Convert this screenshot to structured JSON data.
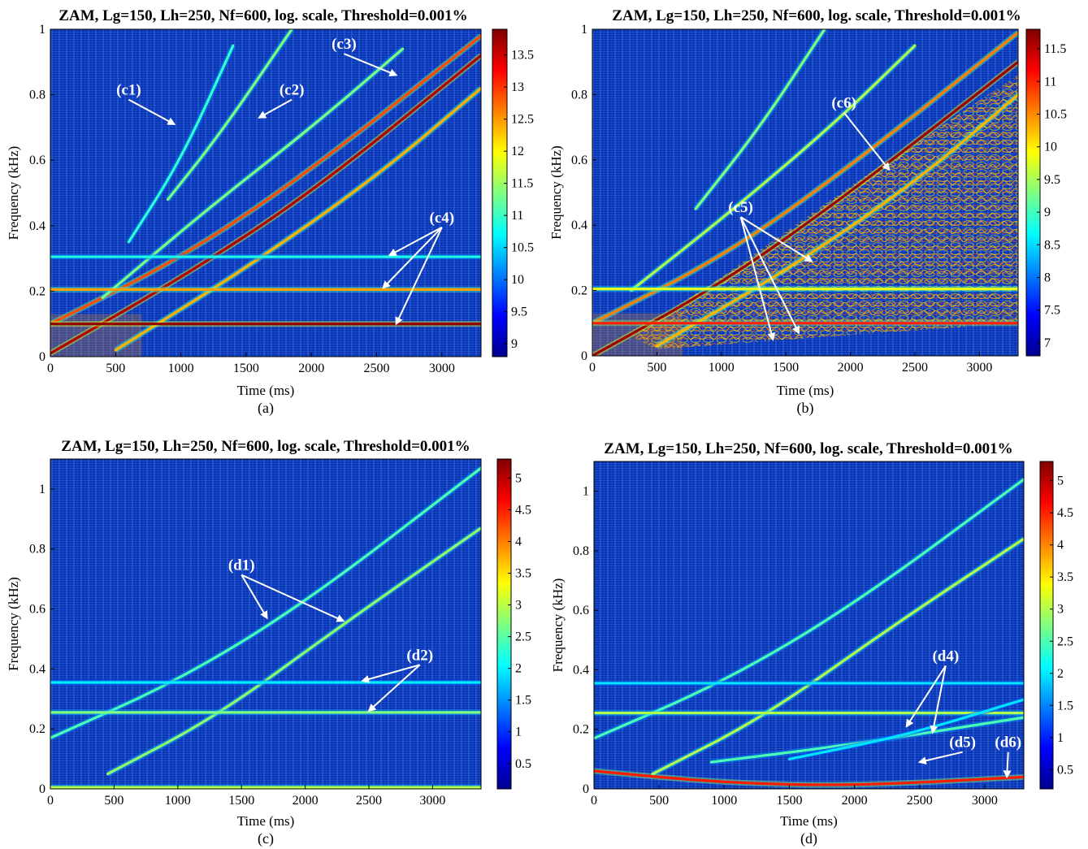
{
  "chart_data": [
    {
      "type": "heatmap",
      "panel": "a",
      "caption": "(a)",
      "title": "ZAM, Lg=150, Lh=250, Nf=600, log. scale, Threshold=0.001%",
      "xlabel": "Time (ms)",
      "ylabel": "Frequency (kHz)",
      "xlim": [
        0,
        3300
      ],
      "ylim": [
        0,
        1
      ],
      "xticks": [
        "0",
        "500",
        "1000",
        "1500",
        "2000",
        "2500",
        "3000"
      ],
      "yticks": [
        "0",
        "0.2",
        "0.4",
        "0.6",
        "0.8",
        "1"
      ],
      "colorbar": {
        "min": 8.8,
        "max": 13.9,
        "ticks": [
          "9",
          "9.5",
          "10",
          "10.5",
          "11",
          "11.5",
          "12",
          "12.5",
          "13",
          "13.5"
        ]
      },
      "ridges": [
        {
          "points": [
            [
              0,
              0.01
            ],
            [
              1000,
              0.24
            ],
            [
              2000,
              0.5
            ],
            [
              3300,
              0.92
            ]
          ],
          "level": 0.95
        },
        {
          "points": [
            [
              0,
              0.1
            ],
            [
              1000,
              0.3
            ],
            [
              2000,
              0.57
            ],
            [
              3300,
              0.98
            ]
          ],
          "level": 0.8
        },
        {
          "points": [
            [
              500,
              0.02
            ],
            [
              1500,
              0.27
            ],
            [
              2500,
              0.55
            ],
            [
              3300,
              0.82
            ]
          ],
          "level": 0.7
        },
        {
          "points": [
            [
              400,
              0.18
            ],
            [
              1200,
              0.45
            ],
            [
              2000,
              0.7
            ],
            [
              2700,
              0.94
            ]
          ],
          "level": 0.5
        },
        {
          "points": [
            [
              900,
              0.48
            ],
            [
              1300,
              0.68
            ],
            [
              1850,
              1.0
            ]
          ],
          "level": 0.5
        },
        {
          "points": [
            [
              600,
              0.35
            ],
            [
              1000,
              0.6
            ],
            [
              1400,
              0.95
            ]
          ],
          "level": 0.42
        },
        {
          "points": [
            [
              0,
              0.1
            ],
            [
              3300,
              0.1
            ]
          ],
          "level": 0.98
        },
        {
          "points": [
            [
              0,
              0.205
            ],
            [
              3300,
              0.205
            ]
          ],
          "level": 0.72
        },
        {
          "points": [
            [
              0,
              0.305
            ],
            [
              3300,
              0.305
            ]
          ],
          "level": 0.4
        }
      ],
      "annotations": [
        {
          "label": "(c1)",
          "at": [
            600,
            0.8
          ],
          "arrows": [
            [
              950,
              0.71
            ]
          ]
        },
        {
          "label": "(c2)",
          "at": [
            1850,
            0.8
          ],
          "arrows": [
            [
              1600,
              0.73
            ]
          ]
        },
        {
          "label": "(c3)",
          "at": [
            2250,
            0.94
          ],
          "arrows": [
            [
              2650,
              0.86
            ]
          ]
        },
        {
          "label": "(c4)",
          "at": [
            3000,
            0.41
          ],
          "arrows": [
            [
              2600,
              0.31
            ],
            [
              2550,
              0.21
            ],
            [
              2650,
              0.1
            ]
          ]
        }
      ]
    },
    {
      "type": "heatmap",
      "panel": "b",
      "caption": "(b)",
      "title": "ZAM, Lg=150, Lh=250, Nf=600, log. scale, Threshold=0.001%",
      "xlabel": "Time (ms)",
      "ylabel": "Frequency (kHz)",
      "xlim": [
        0,
        3300
      ],
      "ylim": [
        0,
        1
      ],
      "xticks": [
        "0",
        "500",
        "1000",
        "1500",
        "2000",
        "2500",
        "3000"
      ],
      "yticks": [
        "0",
        "0.2",
        "0.4",
        "0.6",
        "0.8",
        "1"
      ],
      "colorbar": {
        "min": 6.8,
        "max": 11.8,
        "ticks": [
          "7",
          "7.5",
          "8",
          "8.5",
          "9",
          "9.5",
          "10",
          "10.5",
          "11",
          "11.5"
        ]
      },
      "ridges": [
        {
          "points": [
            [
              0,
              0.0
            ],
            [
              1000,
              0.22
            ],
            [
              2000,
              0.5
            ],
            [
              3300,
              0.9
            ]
          ],
          "level": 0.97
        },
        {
          "points": [
            [
              0,
              0.1
            ],
            [
              1000,
              0.3
            ],
            [
              2000,
              0.58
            ],
            [
              3300,
              0.99
            ]
          ],
          "level": 0.75
        },
        {
          "points": [
            [
              500,
              0.03
            ],
            [
              1500,
              0.26
            ],
            [
              2500,
              0.53
            ],
            [
              3300,
              0.8
            ]
          ],
          "level": 0.7
        },
        {
          "points": [
            [
              300,
              0.2
            ],
            [
              1100,
              0.45
            ],
            [
              1900,
              0.72
            ],
            [
              2500,
              0.95
            ]
          ],
          "level": 0.55
        },
        {
          "points": [
            [
              800,
              0.45
            ],
            [
              1300,
              0.7
            ],
            [
              1800,
              1.0
            ]
          ],
          "level": 0.5
        },
        {
          "points": [
            [
              0,
              0.1
            ],
            [
              3300,
              0.1
            ]
          ],
          "level": 0.85
        },
        {
          "points": [
            [
              0,
              0.205
            ],
            [
              3300,
              0.205
            ]
          ],
          "level": 0.6
        }
      ],
      "annotations": [
        {
          "label": "(c5)",
          "at": [
            1150,
            0.44
          ],
          "arrows": [
            [
              1700,
              0.29
            ],
            [
              1400,
              0.05
            ],
            [
              1600,
              0.07
            ]
          ]
        },
        {
          "label": "(c6)",
          "at": [
            1950,
            0.76
          ],
          "arrows": [
            [
              2300,
              0.57
            ]
          ]
        }
      ]
    },
    {
      "type": "heatmap",
      "panel": "c",
      "caption": "(c)",
      "title": "ZAM, Lg=150, Lh=250, Nf=600, log. scale, Threshold=0.001%",
      "xlabel": "Time (ms)",
      "ylabel": "Frequency (kHz)",
      "xlim": [
        0,
        3380
      ],
      "ylim": [
        0,
        1.1
      ],
      "xticks": [
        "0",
        "500",
        "1000",
        "1500",
        "2000",
        "2500",
        "3000"
      ],
      "yticks": [
        "0",
        "0.2",
        "0.4",
        "0.6",
        "0.8",
        "1"
      ],
      "colorbar": {
        "min": 0.1,
        "max": 5.3,
        "ticks": [
          "0.5",
          "1",
          "1.5",
          "2",
          "2.5",
          "3",
          "3.5",
          "4",
          "4.5",
          "5"
        ]
      },
      "ridges": [
        {
          "points": [
            [
              0,
              0.17
            ],
            [
              1000,
              0.36
            ],
            [
              2000,
              0.62
            ],
            [
              3380,
              1.07
            ]
          ],
          "level": 0.45
        },
        {
          "points": [
            [
              450,
              0.05
            ],
            [
              1300,
              0.24
            ],
            [
              2300,
              0.55
            ],
            [
              3380,
              0.87
            ]
          ],
          "level": 0.52
        },
        {
          "points": [
            [
              0,
              0.355
            ],
            [
              3380,
              0.355
            ]
          ],
          "level": 0.36
        },
        {
          "points": [
            [
              0,
              0.255
            ],
            [
              3380,
              0.255
            ]
          ],
          "level": 0.5
        },
        {
          "points": [
            [
              0,
              0.005
            ],
            [
              3380,
              0.005
            ]
          ],
          "level": 0.55
        }
      ],
      "annotations": [
        {
          "label": "(d1)",
          "at": [
            1500,
            0.73
          ],
          "arrows": [
            [
              1700,
              0.57
            ],
            [
              2300,
              0.56
            ]
          ]
        },
        {
          "label": "(d2)",
          "at": [
            2900,
            0.43
          ],
          "arrows": [
            [
              2450,
              0.36
            ],
            [
              2500,
              0.26
            ]
          ]
        }
      ]
    },
    {
      "type": "heatmap",
      "panel": "d",
      "caption": "(d)",
      "title": "ZAM, Lg=150, Lh=250, Nf=600, log. scale, Threshold=0.001%",
      "xlabel": "Time (ms)",
      "ylabel": "Frequency (kHz)",
      "xlim": [
        0,
        3300
      ],
      "ylim": [
        0,
        1.1
      ],
      "xticks": [
        "0",
        "500",
        "1000",
        "1500",
        "2000",
        "2500",
        "3000"
      ],
      "yticks": [
        "0",
        "0.2",
        "0.4",
        "0.6",
        "0.8",
        "1"
      ],
      "colorbar": {
        "min": 0.2,
        "max": 5.3,
        "ticks": [
          "0.5",
          "1",
          "1.5",
          "2",
          "2.5",
          "3",
          "3.5",
          "4",
          "4.5",
          "5"
        ]
      },
      "ridges": [
        {
          "points": [
            [
              0,
              0.17
            ],
            [
              1000,
              0.36
            ],
            [
              2000,
              0.62
            ],
            [
              3300,
              1.04
            ]
          ],
          "level": 0.45
        },
        {
          "points": [
            [
              450,
              0.05
            ],
            [
              1300,
              0.24
            ],
            [
              2300,
              0.55
            ],
            [
              3300,
              0.84
            ]
          ],
          "level": 0.55
        },
        {
          "points": [
            [
              0,
              0.355
            ],
            [
              3300,
              0.355
            ]
          ],
          "level": 0.35
        },
        {
          "points": [
            [
              0,
              0.255
            ],
            [
              3300,
              0.255
            ]
          ],
          "level": 0.55
        },
        {
          "points": [
            [
              900,
              0.09
            ],
            [
              2000,
              0.15
            ],
            [
              3300,
              0.24
            ]
          ],
          "level": 0.45
        },
        {
          "points": [
            [
              1500,
              0.1
            ],
            [
              2400,
              0.18
            ],
            [
              3300,
              0.3
            ]
          ],
          "level": 0.35
        },
        {
          "points": [
            [
              0,
              0.06
            ],
            [
              1000,
              0.02
            ],
            [
              2000,
              0.01
            ],
            [
              3300,
              0.04
            ]
          ],
          "level": 0.85
        }
      ],
      "annotations": [
        {
          "label": "(d4)",
          "at": [
            2700,
            0.43
          ],
          "arrows": [
            [
              2400,
              0.21
            ],
            [
              2600,
              0.19
            ]
          ]
        },
        {
          "label": "(d5)",
          "at": [
            2830,
            0.14
          ],
          "arrows": [
            [
              2500,
              0.09
            ]
          ]
        },
        {
          "label": "(d6)",
          "at": [
            3180,
            0.14
          ],
          "arrows": [
            [
              3170,
              0.04
            ]
          ]
        }
      ]
    }
  ]
}
